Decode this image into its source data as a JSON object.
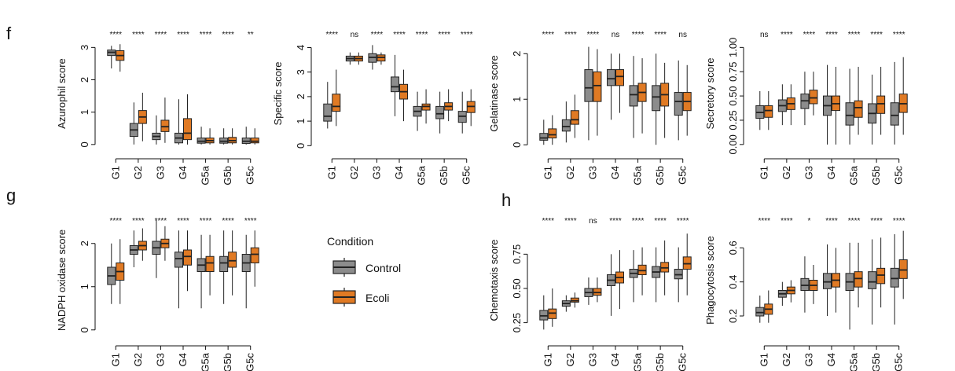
{
  "panel_labels": [
    "f",
    "g",
    "h"
  ],
  "colors": {
    "control": "#8c8c8c",
    "ecoli": "#e07a24",
    "line": "#222222",
    "axis": "#111111"
  },
  "legend": {
    "title": "Condition",
    "items": [
      "Control",
      "Ecoli"
    ]
  },
  "chart_data": [
    {
      "type": "boxplot",
      "title": "",
      "xlabel": "",
      "ylabel": "Azurophil score",
      "categories": [
        "G1",
        "G2",
        "G3",
        "G4",
        "G5a",
        "G5b",
        "G5c"
      ],
      "ylim": [
        -0.15,
        3.3
      ],
      "yticks": [
        0,
        1,
        2,
        3
      ],
      "ytick_labels": [
        "0",
        "1",
        "2",
        "3"
      ],
      "significance": [
        "****",
        "****",
        "****",
        "****",
        "****",
        "****",
        "**"
      ],
      "series": [
        {
          "name": "Control",
          "boxes": [
            [
              2.35,
              2.75,
              2.85,
              2.92,
              3.05
            ],
            [
              0.0,
              0.25,
              0.45,
              0.65,
              1.3
            ],
            [
              0.0,
              0.15,
              0.25,
              0.35,
              0.9
            ],
            [
              0.0,
              0.05,
              0.2,
              0.35,
              1.4
            ],
            [
              0.0,
              0.04,
              0.1,
              0.2,
              0.55
            ],
            [
              0.0,
              0.04,
              0.1,
              0.2,
              0.5
            ],
            [
              0.0,
              0.03,
              0.1,
              0.2,
              0.55
            ]
          ]
        },
        {
          "name": "Ecoli",
          "boxes": [
            [
              2.25,
              2.6,
              2.75,
              2.9,
              3.1
            ],
            [
              0.1,
              0.65,
              0.85,
              1.05,
              1.6
            ],
            [
              0.05,
              0.4,
              0.55,
              0.75,
              1.45
            ],
            [
              0.0,
              0.15,
              0.35,
              0.8,
              1.55
            ],
            [
              0.0,
              0.05,
              0.12,
              0.2,
              0.5
            ],
            [
              0.0,
              0.05,
              0.12,
              0.22,
              0.5
            ],
            [
              0.0,
              0.05,
              0.1,
              0.2,
              0.5
            ]
          ]
        }
      ]
    },
    {
      "type": "boxplot",
      "title": "",
      "xlabel": "",
      "ylabel": "Specific score",
      "categories": [
        "G1",
        "G2",
        "G3",
        "G4",
        "G5a",
        "G5b",
        "G5c"
      ],
      "ylim": [
        -0.15,
        4.4
      ],
      "yticks": [
        0,
        1,
        2,
        3,
        4
      ],
      "ytick_labels": [
        "0",
        "1",
        "2",
        "3",
        "4"
      ],
      "significance": [
        "****",
        "ns",
        "****",
        "****",
        "****",
        "****",
        "****"
      ],
      "series": [
        {
          "name": "Control",
          "boxes": [
            [
              0.7,
              1.0,
              1.2,
              1.7,
              2.6
            ],
            [
              3.3,
              3.45,
              3.55,
              3.65,
              3.8
            ],
            [
              3.1,
              3.4,
              3.6,
              3.75,
              4.1
            ],
            [
              1.2,
              2.2,
              2.4,
              2.8,
              3.7
            ],
            [
              0.6,
              1.2,
              1.4,
              1.6,
              2.2
            ],
            [
              0.5,
              1.1,
              1.3,
              1.6,
              2.2
            ],
            [
              0.5,
              0.95,
              1.2,
              1.4,
              2.2
            ]
          ]
        },
        {
          "name": "Ecoli",
          "boxes": [
            [
              0.8,
              1.4,
              1.6,
              2.1,
              3.1
            ],
            [
              3.3,
              3.45,
              3.55,
              3.65,
              3.8
            ],
            [
              3.3,
              3.45,
              3.6,
              3.7,
              3.8
            ],
            [
              1.0,
              1.9,
              2.2,
              2.5,
              3.1
            ],
            [
              0.9,
              1.45,
              1.6,
              1.7,
              2.3
            ],
            [
              1.0,
              1.45,
              1.6,
              1.75,
              2.3
            ],
            [
              0.8,
              1.35,
              1.6,
              1.8,
              2.3
            ]
          ]
        }
      ]
    },
    {
      "type": "boxplot",
      "title": "",
      "xlabel": "",
      "ylabel": "Gelatinase score",
      "categories": [
        "G1",
        "G2",
        "G3",
        "G4",
        "G5a",
        "G5b",
        "G5c"
      ],
      "ylim": [
        -0.1,
        2.35
      ],
      "yticks": [
        0,
        1,
        2
      ],
      "ytick_labels": [
        "0",
        "1",
        "2"
      ],
      "significance": [
        "****",
        "****",
        "****",
        "ns",
        "****",
        "****",
        "ns"
      ],
      "series": [
        {
          "name": "Control",
          "boxes": [
            [
              0.0,
              0.1,
              0.15,
              0.25,
              0.55
            ],
            [
              0.05,
              0.3,
              0.4,
              0.55,
              0.95
            ],
            [
              0.1,
              0.95,
              1.25,
              1.65,
              2.15
            ],
            [
              0.55,
              1.3,
              1.45,
              1.65,
              2.0
            ],
            [
              0.15,
              0.85,
              1.1,
              1.3,
              1.95
            ],
            [
              0.0,
              0.75,
              1.05,
              1.3,
              2.0
            ],
            [
              0.1,
              0.65,
              0.95,
              1.15,
              1.85
            ]
          ]
        },
        {
          "name": "Ecoli",
          "boxes": [
            [
              0.0,
              0.15,
              0.22,
              0.35,
              0.65
            ],
            [
              0.15,
              0.45,
              0.55,
              0.75,
              1.1
            ],
            [
              0.2,
              0.95,
              1.3,
              1.6,
              2.1
            ],
            [
              0.7,
              1.3,
              1.5,
              1.65,
              2.0
            ],
            [
              0.25,
              0.95,
              1.15,
              1.35,
              1.9
            ],
            [
              0.15,
              0.85,
              1.1,
              1.35,
              1.8
            ],
            [
              0.2,
              0.75,
              0.95,
              1.15,
              1.75
            ]
          ]
        }
      ]
    },
    {
      "type": "boxplot",
      "title": "",
      "xlabel": "",
      "ylabel": "Secretory score",
      "categories": [
        "G1",
        "G2",
        "G3",
        "G4",
        "G5a",
        "G5b",
        "G5c"
      ],
      "ylim": [
        -0.05,
        1.1
      ],
      "yticks": [
        0,
        0.25,
        0.5,
        0.75,
        1.0
      ],
      "ytick_labels": [
        "0.00",
        "0.25",
        "0.50",
        "0.75",
        "1.00"
      ],
      "significance": [
        "ns",
        "****",
        "****",
        "****",
        "****",
        "****",
        "****"
      ],
      "series": [
        {
          "name": "Control",
          "boxes": [
            [
              0.15,
              0.27,
              0.33,
              0.4,
              0.55
            ],
            [
              0.2,
              0.34,
              0.4,
              0.46,
              0.62
            ],
            [
              0.2,
              0.37,
              0.45,
              0.52,
              0.75
            ],
            [
              0.0,
              0.3,
              0.4,
              0.5,
              0.82
            ],
            [
              0.0,
              0.2,
              0.3,
              0.43,
              0.78
            ],
            [
              0.0,
              0.22,
              0.32,
              0.42,
              0.72
            ],
            [
              0.0,
              0.2,
              0.3,
              0.43,
              0.85
            ]
          ]
        },
        {
          "name": "Ecoli",
          "boxes": [
            [
              0.15,
              0.28,
              0.35,
              0.4,
              0.55
            ],
            [
              0.2,
              0.36,
              0.42,
              0.48,
              0.62
            ],
            [
              0.3,
              0.42,
              0.48,
              0.56,
              0.75
            ],
            [
              0.0,
              0.35,
              0.42,
              0.5,
              0.8
            ],
            [
              0.1,
              0.28,
              0.38,
              0.45,
              0.8
            ],
            [
              0.1,
              0.32,
              0.42,
              0.5,
              0.8
            ],
            [
              0.1,
              0.33,
              0.42,
              0.52,
              0.9
            ]
          ]
        }
      ]
    },
    {
      "type": "boxplot",
      "title": "",
      "xlabel": "",
      "ylabel": "NADPH oxidase score",
      "categories": [
        "G1",
        "G2",
        "G3",
        "G4",
        "G5a",
        "G5b",
        "G5c"
      ],
      "ylim": [
        -0.15,
        2.45
      ],
      "yticks": [
        0,
        1,
        2
      ],
      "ytick_labels": [
        "0",
        "1",
        "2"
      ],
      "significance": [
        "****",
        "****",
        "****",
        "****",
        "****",
        "****",
        "****"
      ],
      "series": [
        {
          "name": "Control",
          "boxes": [
            [
              0.6,
              1.05,
              1.25,
              1.45,
              2.0
            ],
            [
              1.45,
              1.75,
              1.85,
              1.95,
              2.3
            ],
            [
              1.2,
              1.75,
              1.9,
              2.05,
              2.55
            ],
            [
              0.5,
              1.45,
              1.65,
              1.8,
              2.3
            ],
            [
              0.5,
              1.35,
              1.5,
              1.65,
              2.2
            ],
            [
              0.6,
              1.35,
              1.55,
              1.7,
              2.3
            ],
            [
              0.5,
              1.35,
              1.55,
              1.75,
              2.2
            ]
          ]
        },
        {
          "name": "Ecoli",
          "boxes": [
            [
              0.6,
              1.15,
              1.35,
              1.55,
              2.1
            ],
            [
              1.6,
              1.85,
              1.95,
              2.05,
              2.35
            ],
            [
              1.6,
              1.9,
              2.0,
              2.1,
              2.4
            ],
            [
              0.9,
              1.5,
              1.7,
              1.85,
              2.3
            ],
            [
              0.8,
              1.35,
              1.55,
              1.7,
              2.2
            ],
            [
              0.8,
              1.45,
              1.6,
              1.8,
              2.3
            ],
            [
              1.0,
              1.55,
              1.75,
              1.9,
              2.3
            ]
          ]
        }
      ]
    },
    {
      "type": "boxplot",
      "title": "",
      "xlabel": "",
      "ylabel": "Chemotaxis score",
      "categories": [
        "G1",
        "G2",
        "G3",
        "G4",
        "G5a",
        "G5b",
        "G5c"
      ],
      "ylim": [
        0.15,
        0.97
      ],
      "yticks": [
        0.25,
        0.5,
        0.75
      ],
      "ytick_labels": [
        "0.25",
        "0.50",
        "0.75"
      ],
      "significance": [
        "****",
        "****",
        "ns",
        "****",
        "****",
        "****",
        "****"
      ],
      "series": [
        {
          "name": "Control",
          "boxes": [
            [
              0.2,
              0.27,
              0.3,
              0.34,
              0.45
            ],
            [
              0.33,
              0.37,
              0.39,
              0.41,
              0.45
            ],
            [
              0.38,
              0.44,
              0.47,
              0.5,
              0.58
            ],
            [
              0.3,
              0.52,
              0.56,
              0.6,
              0.75
            ],
            [
              0.4,
              0.58,
              0.61,
              0.64,
              0.78
            ],
            [
              0.4,
              0.58,
              0.62,
              0.66,
              0.8
            ],
            [
              0.4,
              0.57,
              0.6,
              0.64,
              0.8
            ]
          ]
        },
        {
          "name": "Ecoli",
          "boxes": [
            [
              0.22,
              0.28,
              0.32,
              0.35,
              0.5
            ],
            [
              0.36,
              0.4,
              0.41,
              0.43,
              0.47
            ],
            [
              0.4,
              0.45,
              0.47,
              0.5,
              0.58
            ],
            [
              0.35,
              0.54,
              0.58,
              0.62,
              0.78
            ],
            [
              0.45,
              0.6,
              0.63,
              0.67,
              0.8
            ],
            [
              0.45,
              0.62,
              0.65,
              0.69,
              0.85
            ],
            [
              0.45,
              0.64,
              0.68,
              0.73,
              0.9
            ]
          ]
        }
      ]
    },
    {
      "type": "boxplot",
      "title": "",
      "xlabel": "",
      "ylabel": "Phagocytosis score",
      "categories": [
        "G1",
        "G2",
        "G3",
        "G4",
        "G5a",
        "G5b",
        "G5c"
      ],
      "ylim": [
        0.08,
        0.74
      ],
      "yticks": [
        0.2,
        0.4,
        0.6
      ],
      "ytick_labels": [
        "0.2",
        "0.4",
        "0.6"
      ],
      "significance": [
        "****",
        "****",
        "*",
        "****",
        "****",
        "****",
        "****"
      ],
      "series": [
        {
          "name": "Control",
          "boxes": [
            [
              0.16,
              0.2,
              0.22,
              0.25,
              0.32
            ],
            [
              0.26,
              0.31,
              0.33,
              0.35,
              0.4
            ],
            [
              0.22,
              0.35,
              0.38,
              0.42,
              0.55
            ],
            [
              0.2,
              0.36,
              0.4,
              0.45,
              0.62
            ],
            [
              0.12,
              0.35,
              0.4,
              0.45,
              0.63
            ],
            [
              0.15,
              0.36,
              0.4,
              0.46,
              0.65
            ],
            [
              0.15,
              0.37,
              0.42,
              0.48,
              0.68
            ]
          ]
        },
        {
          "name": "Ecoli",
          "boxes": [
            [
              0.16,
              0.21,
              0.24,
              0.27,
              0.35
            ],
            [
              0.28,
              0.33,
              0.35,
              0.37,
              0.41
            ],
            [
              0.27,
              0.35,
              0.38,
              0.41,
              0.5
            ],
            [
              0.22,
              0.37,
              0.41,
              0.45,
              0.6
            ],
            [
              0.25,
              0.37,
              0.42,
              0.46,
              0.63
            ],
            [
              0.25,
              0.39,
              0.44,
              0.48,
              0.66
            ],
            [
              0.3,
              0.42,
              0.47,
              0.53,
              0.7
            ]
          ]
        }
      ]
    }
  ]
}
